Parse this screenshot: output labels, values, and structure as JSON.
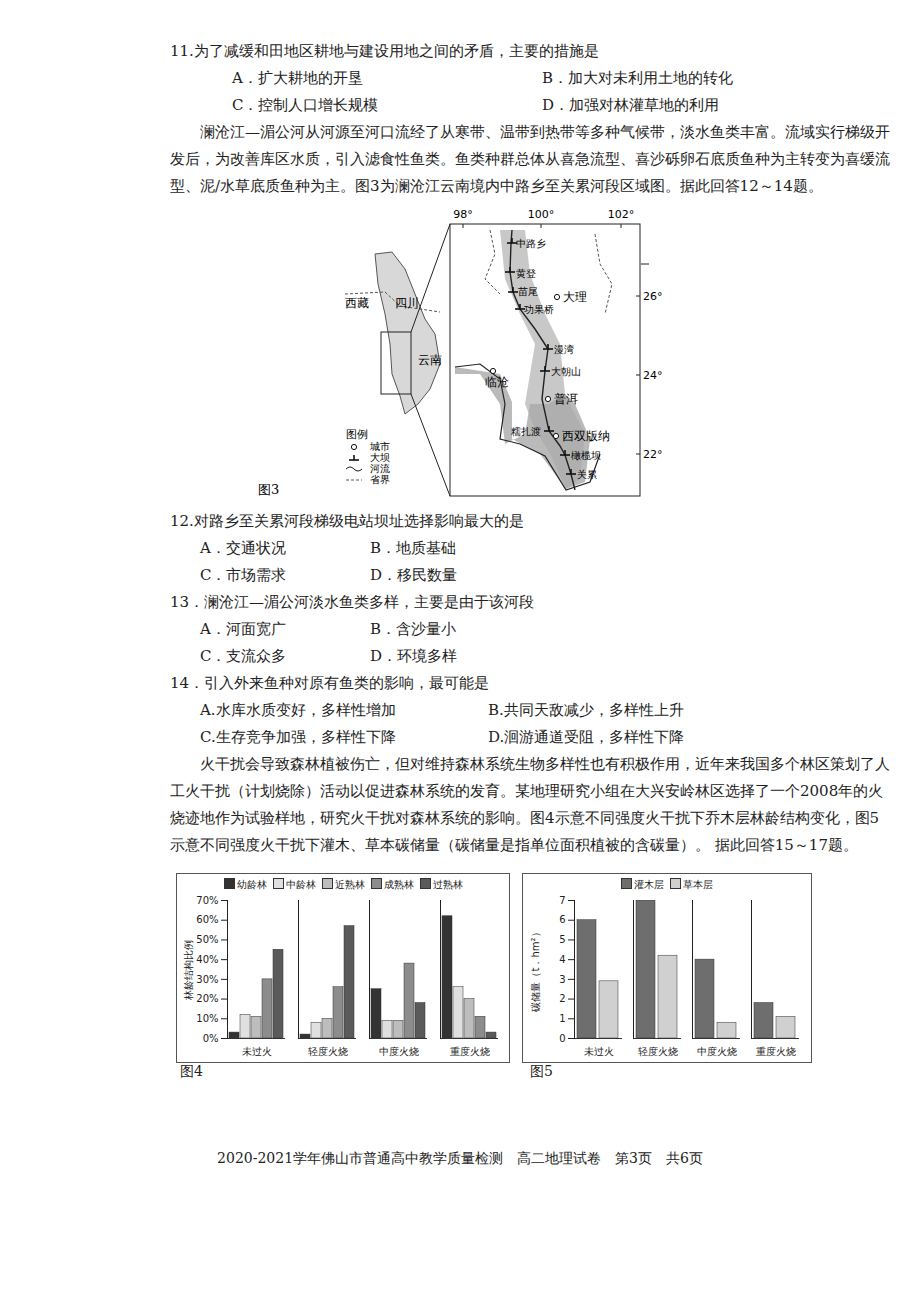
{
  "q11": {
    "stem": "11.为了减缓和田地区耕地与建设用地之间的矛盾，主要的措施是",
    "options": [
      "A．扩大耕地的开垦",
      "B．加大对未利用土地的转化",
      "C．控制人口增长规模",
      "D．加强对林灌草地的利用"
    ]
  },
  "passage1": "澜沧江—湄公河从河源至河口流经了从寒带、温带到热带等多种气候带，淡水鱼类丰富。流域实行梯级开发后，为改善库区水质，引入滤食性鱼类。鱼类种群总体从喜急流型、喜沙砾卵石底质鱼种为主转变为喜缓流型、泥/水草底质鱼种为主。图3为澜沧江云南境内中路乡至关累河段区域图。据此回答12～14题。",
  "figure3": {
    "caption": "图3",
    "lon_labels": [
      "98°",
      "100°",
      "102°"
    ],
    "lat_labels": [
      "26°",
      "24°",
      "22°"
    ],
    "inset_labels": [
      "西藏",
      "四川",
      "云南"
    ],
    "places": [
      {
        "name": "中路乡",
        "kind": "dam"
      },
      {
        "name": "黄登",
        "kind": "dam"
      },
      {
        "name": "苗尾",
        "kind": "dam"
      },
      {
        "name": "功果桥",
        "kind": "dam"
      },
      {
        "name": "大理",
        "kind": "city"
      },
      {
        "name": "漫湾",
        "kind": "dam"
      },
      {
        "name": "大朝山",
        "kind": "dam"
      },
      {
        "name": "临沧",
        "kind": "city"
      },
      {
        "name": "普洱",
        "kind": "city"
      },
      {
        "name": "糯扎渡",
        "kind": "dam"
      },
      {
        "name": "西双版纳",
        "kind": "city"
      },
      {
        "name": "橄榄坝",
        "kind": "dam"
      },
      {
        "name": "关累",
        "kind": "dam"
      }
    ],
    "legend": {
      "title": "图例",
      "items": [
        "城市",
        "大坝",
        "河流",
        "省界"
      ]
    }
  },
  "questions": [
    {
      "stem": "12.对路乡至关累河段梯级电站坝址选择影响最大的是",
      "options": [
        "A．交通状况",
        "B．地质基础",
        "C．市场需求",
        "D．移民数量"
      ]
    },
    {
      "stem": "13．澜沧江—湄公河淡水鱼类多样，主要是由于该河段",
      "options": [
        "A．河面宽广",
        "B．含沙量小",
        "C．支流众多",
        "D．环境多样"
      ]
    },
    {
      "stem": "14．引入外来鱼种对原有鱼类的影响，最可能是",
      "options": [
        "A.水库水质变好，多样性增加",
        "B.共同天敌减少，多样性上升",
        "C.生存竞争加强，多样性下降",
        "D.洄游通道受阻，多样性下降"
      ]
    }
  ],
  "passage2": "火干扰会导致森林植被伤亡，但对维持森林系统生物多样性也有积极作用，近年来我国多个林区策划了人工火干扰（计划烧除）活动以促进森林系统的发育。某地理研究小组在大兴安岭林区选择了一个2008年的火烧迹地作为试验样地，研究火干扰对森林系统的影响。图4示意不同强度火干扰下乔木层林龄结构变化，图5示意不同强度火干扰下灌木、草本碳储量（碳储量是指单位面积植被的含碳量）。 据此回答15～17题。",
  "chart_data": [
    {
      "type": "bar",
      "caption": "图4",
      "y_label": "林龄结构比例",
      "categories": [
        "未过火",
        "轻度火烧",
        "中度火烧",
        "重度火烧"
      ],
      "series": [
        {
          "name": "幼龄林",
          "color": "#333333",
          "values": [
            3,
            2,
            25,
            62
          ]
        },
        {
          "name": "中龄林",
          "color": "#e0e0e0",
          "values": [
            12,
            8,
            9,
            26
          ]
        },
        {
          "name": "近熟林",
          "color": "#bdbdbd",
          "values": [
            11,
            10,
            9,
            20
          ]
        },
        {
          "name": "成熟林",
          "color": "#8c8c8c",
          "values": [
            30,
            26,
            38,
            11
          ]
        },
        {
          "name": "过熟林",
          "color": "#5a5a5a",
          "values": [
            45,
            57,
            18,
            3
          ]
        }
      ],
      "ylim": [
        0,
        70
      ],
      "yticks": [
        {
          "value": 0,
          "label": "0%"
        },
        {
          "value": 10,
          "label": "10%"
        },
        {
          "value": 20,
          "label": "20%"
        },
        {
          "value": 30,
          "label": "30%"
        },
        {
          "value": 40,
          "label": "40%"
        },
        {
          "value": 50,
          "label": "50%"
        },
        {
          "value": 60,
          "label": "60%"
        },
        {
          "value": 70,
          "label": "70%"
        }
      ],
      "grid": false,
      "legend": "top"
    },
    {
      "type": "bar",
      "caption": "图5",
      "y_label": "碳储量（t．hm²）",
      "categories": [
        "未过火",
        "轻度火烧",
        "中度火烧",
        "重度火烧"
      ],
      "series": [
        {
          "name": "灌木层",
          "color": "#6e6e6e",
          "values": [
            6,
            7,
            4,
            1.8
          ]
        },
        {
          "name": "草本层",
          "color": "#d0d0d0",
          "values": [
            2.9,
            4.2,
            0.8,
            1.1
          ]
        }
      ],
      "ylim": [
        0,
        7
      ],
      "yticks": [
        0,
        1,
        2,
        3,
        4,
        5,
        6,
        7
      ],
      "grid": false,
      "legend": "top"
    }
  ],
  "footer": "2020-2021学年佛山市普通高中教学质量检测　高二地理试卷　第3页　共6页"
}
